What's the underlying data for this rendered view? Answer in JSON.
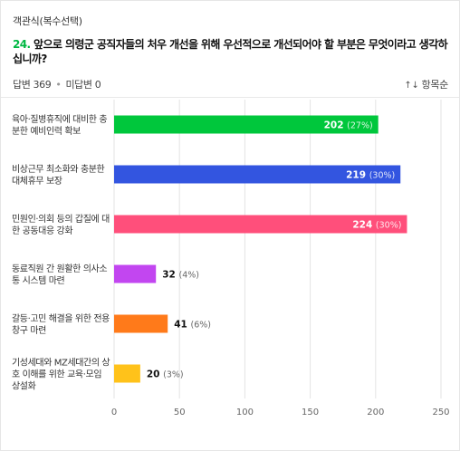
{
  "header": {
    "question_type": "객관식(복수선택)",
    "question_number": "24.",
    "question_text": " 앞으로 의령군 공직자들의 처우 개선을 위해 우선적으로 개선되어야 할 부분은 무엇이라고 생각하십니까?",
    "answer_count": "답변 369",
    "no_answer_count": "미답변 0",
    "sort_label": "항목순",
    "sort_icon": "sort-arrows-icon"
  },
  "chart_data": {
    "type": "bar",
    "orientation": "horizontal",
    "title": "",
    "xlabel": "",
    "ylabel": "",
    "xlim": [
      0,
      250
    ],
    "xticks": [
      0,
      50,
      100,
      150,
      200,
      250
    ],
    "grid": true,
    "categories": [
      [
        "육아·질병휴직에 대비한 충",
        "분한 예비인력 확보"
      ],
      [
        "비상근무 최소화와 충분한",
        "대체휴무 보장"
      ],
      [
        "민원인·의회 등의 갑질에 대",
        "한 공동대응 강화"
      ],
      [
        "동료직원 간 원활한 의사소",
        "통 시스템 마련"
      ],
      [
        "갈등·고민 해결을 위한 전용",
        "창구 마련"
      ],
      [
        "기성세대와 MZ세대간의 상",
        "호 이해를 위한 교육·모임",
        "상설화"
      ]
    ],
    "values": [
      202,
      219,
      224,
      32,
      41,
      20
    ],
    "percents": [
      "(27%)",
      "(30%)",
      "(30%)",
      "(4%)",
      "(6%)",
      "(3%)"
    ],
    "colors": [
      "#00c73c",
      "#3355e0",
      "#ff4f7b",
      "#c246f0",
      "#ff7a1a",
      "#ffc21a"
    ]
  }
}
